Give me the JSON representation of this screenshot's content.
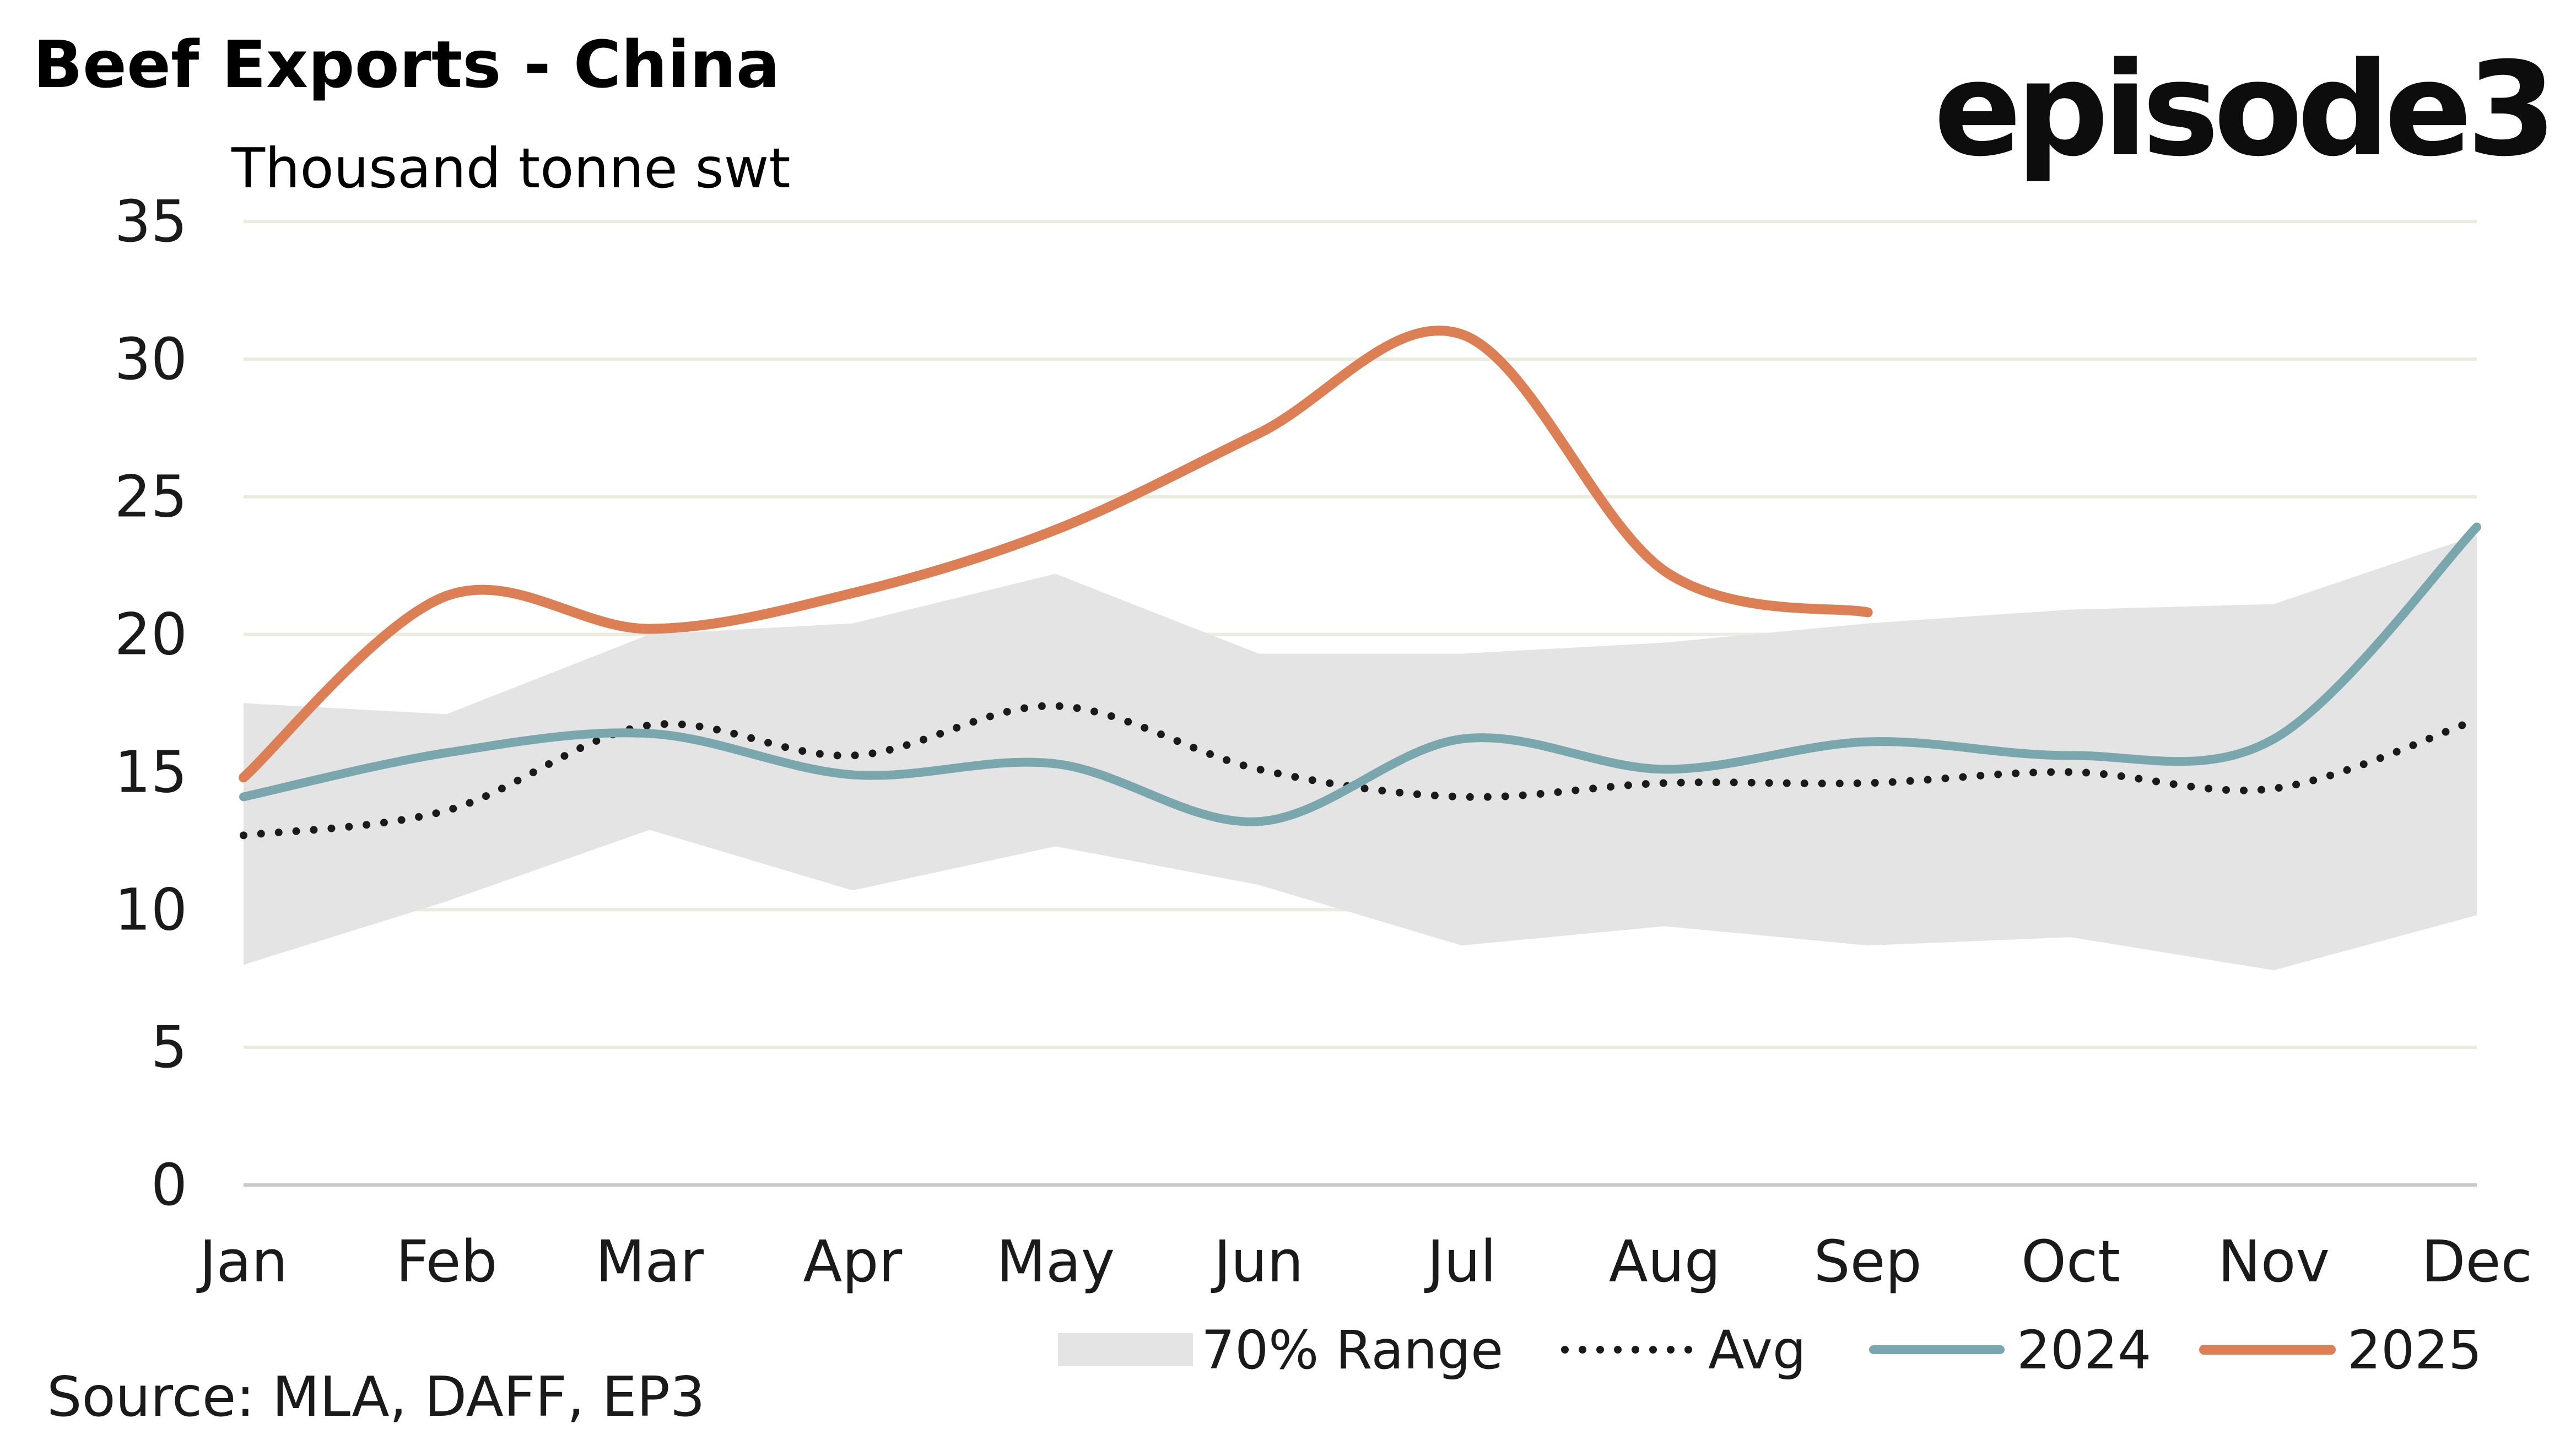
{
  "header": {
    "title": "Beef Exports - China",
    "unit_label": "Thousand tonne swt",
    "logo_text": "episode3"
  },
  "footer": {
    "source": "Source: MLA, DAFF, EP3"
  },
  "colors": {
    "range_fill": "#e4e4e4",
    "avg": "#1a1a1a",
    "series_2024": "#79a7ad",
    "series_2025": "#dc7f55",
    "grid": "#ecebdf"
  },
  "chart_data": {
    "type": "line",
    "title": "Beef Exports - China",
    "ylabel": "Thousand tonne swt",
    "xlabel": "",
    "categories": [
      "Jan",
      "Feb",
      "Mar",
      "Apr",
      "May",
      "Jun",
      "Jul",
      "Aug",
      "Sep",
      "Oct",
      "Nov",
      "Dec"
    ],
    "ylim": [
      0,
      35
    ],
    "yticks": [
      "0",
      "5",
      "10",
      "15",
      "20",
      "25",
      "30",
      "35"
    ],
    "grid": true,
    "legend_position": "bottom-right",
    "range": {
      "name": "70% Range",
      "low": [
        8.0,
        10.3,
        12.9,
        10.7,
        12.3,
        10.9,
        8.7,
        9.4,
        8.7,
        9.0,
        7.8,
        9.8
      ],
      "high": [
        17.5,
        17.1,
        20.0,
        20.4,
        22.2,
        19.3,
        19.3,
        19.7,
        20.4,
        20.9,
        21.1,
        23.6
      ]
    },
    "series": [
      {
        "name": "Avg",
        "style": "dotted",
        "values": [
          12.7,
          13.6,
          16.7,
          15.6,
          17.4,
          15.1,
          14.1,
          14.6,
          14.6,
          15.0,
          14.4,
          16.9
        ]
      },
      {
        "name": "2024",
        "style": "solid",
        "values": [
          14.1,
          15.7,
          16.4,
          14.9,
          15.3,
          13.2,
          16.2,
          15.1,
          16.1,
          15.6,
          16.2,
          23.9
        ]
      },
      {
        "name": "2025",
        "style": "solid",
        "values": [
          14.8,
          21.4,
          20.2,
          21.5,
          23.8,
          27.3,
          30.9,
          22.3,
          20.8,
          null,
          null,
          null
        ]
      }
    ]
  }
}
